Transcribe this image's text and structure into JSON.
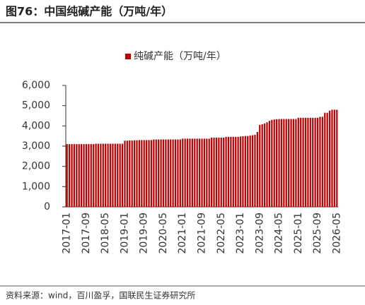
{
  "chart_data": {
    "type": "bar",
    "title": "图76：中国纯碱产能（万吨/年）",
    "source": "资料来源：wind，百川盈孚，国联民生证券研究所",
    "categories": [
      "2017-01",
      null,
      null,
      null,
      null,
      null,
      null,
      null,
      "2017-09",
      null,
      null,
      null,
      null,
      null,
      null,
      null,
      "2018-05",
      null,
      null,
      null,
      null,
      null,
      null,
      null,
      "2019-01",
      null,
      null,
      null,
      null,
      null,
      null,
      null,
      "2019-09",
      null,
      null,
      null,
      null,
      null,
      null,
      null,
      "2020-05",
      null,
      null,
      null,
      null,
      null,
      null,
      null,
      "2021-01",
      null,
      null,
      null,
      null,
      null,
      null,
      null,
      "2021-09",
      null,
      null,
      null,
      null,
      null,
      null,
      null,
      "2022-05",
      null,
      null,
      null,
      null,
      null,
      null,
      null,
      "2023-01",
      null,
      null,
      null,
      null,
      null,
      null,
      null,
      "2023-09",
      null,
      null,
      null,
      null,
      null,
      null,
      null,
      "2024-05",
      null,
      null,
      null,
      null,
      null,
      null,
      null,
      "2025-01",
      null,
      null,
      null,
      null,
      null,
      null,
      null,
      "2025-09",
      null,
      null,
      null,
      null,
      null,
      null,
      null,
      "2026-05"
    ],
    "series": [
      {
        "name": "纯碱产能（万吨/年）",
        "color": "#c00000",
        "values": [
          3100,
          3100,
          3100,
          3100,
          3100,
          3100,
          3100,
          3100,
          3100,
          3100,
          3100,
          3100,
          3120,
          3120,
          3120,
          3120,
          3120,
          3120,
          3120,
          3120,
          3120,
          3120,
          3120,
          3120,
          3270,
          3270,
          3280,
          3280,
          3290,
          3290,
          3300,
          3300,
          3300,
          3300,
          3300,
          3300,
          3330,
          3330,
          3330,
          3330,
          3330,
          3330,
          3330,
          3330,
          3330,
          3330,
          3330,
          3330,
          3370,
          3370,
          3370,
          3370,
          3370,
          3370,
          3370,
          3370,
          3370,
          3370,
          3370,
          3370,
          3420,
          3420,
          3420,
          3420,
          3420,
          3420,
          3460,
          3460,
          3460,
          3460,
          3460,
          3460,
          3480,
          3490,
          3500,
          3500,
          3520,
          3540,
          3560,
          3700,
          4050,
          4080,
          4120,
          4180,
          4250,
          4300,
          4320,
          4330,
          4340,
          4340,
          4340,
          4340,
          4340,
          4340,
          4340,
          4340,
          4400,
          4400,
          4400,
          4400,
          4400,
          4400,
          4400,
          4400,
          4400,
          4450,
          4450,
          4650,
          4650,
          4750,
          4800,
          4800,
          4800
        ]
      }
    ],
    "ylim": [
      0,
      6000
    ],
    "yticks": [
      0,
      {
        "value": 1000,
        "label": "1,000"
      },
      {
        "value": 2000,
        "label": "2,000"
      },
      {
        "value": 3000,
        "label": "3,000"
      },
      {
        "value": 4000,
        "label": "4,000"
      },
      {
        "value": 5000,
        "label": "5,000"
      },
      {
        "value": 6000,
        "label": "6,000"
      }
    ],
    "grid": false
  }
}
